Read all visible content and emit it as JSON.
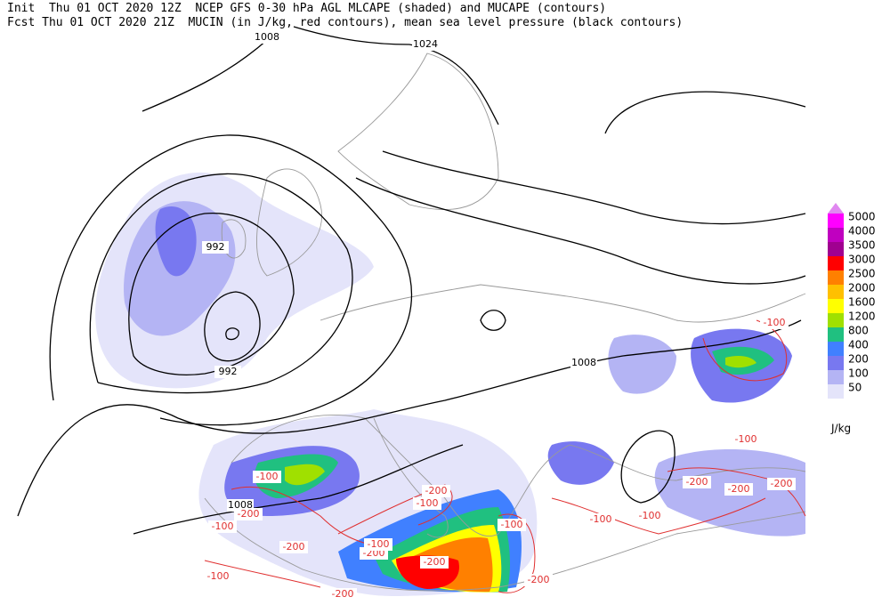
{
  "header": {
    "line1": "Init  Thu 01 OCT 2020 12Z  NCEP GFS 0-30 hPa AGL MLCAPE (shaded) and MUCAPE (contours)",
    "line2": "Fcst Thu 01 OCT 2020 21Z  MUCIN (in J/kg, red contours), mean sea level pressure (black contours)"
  },
  "legend": {
    "levels": [
      {
        "value": 5000,
        "color": "#ff00ff"
      },
      {
        "value": 4000,
        "color": "#c000c0"
      },
      {
        "value": 3500,
        "color": "#a00090"
      },
      {
        "value": 3000,
        "color": "#ff0000"
      },
      {
        "value": 2500,
        "color": "#ff8000"
      },
      {
        "value": 2000,
        "color": "#ffc000"
      },
      {
        "value": 1600,
        "color": "#ffff00"
      },
      {
        "value": 1200,
        "color": "#a0e000"
      },
      {
        "value": 800,
        "color": "#20c080"
      },
      {
        "value": 400,
        "color": "#4080ff"
      },
      {
        "value": 200,
        "color": "#7878f0"
      },
      {
        "value": 100,
        "color": "#b4b4f4"
      },
      {
        "value": 50,
        "color": "#e4e4fa"
      }
    ],
    "top_color": "#e088f0",
    "unit": "J/kg"
  },
  "pressure_labels": [
    1008,
    1024,
    992,
    992,
    1008,
    1008
  ],
  "cin_labels": [
    -100,
    -200,
    -100,
    -200,
    -200,
    -100,
    -200,
    -100,
    -200,
    -100,
    -200,
    -100,
    -200,
    -100,
    -100,
    -200,
    -200,
    -200,
    -100,
    -100
  ]
}
